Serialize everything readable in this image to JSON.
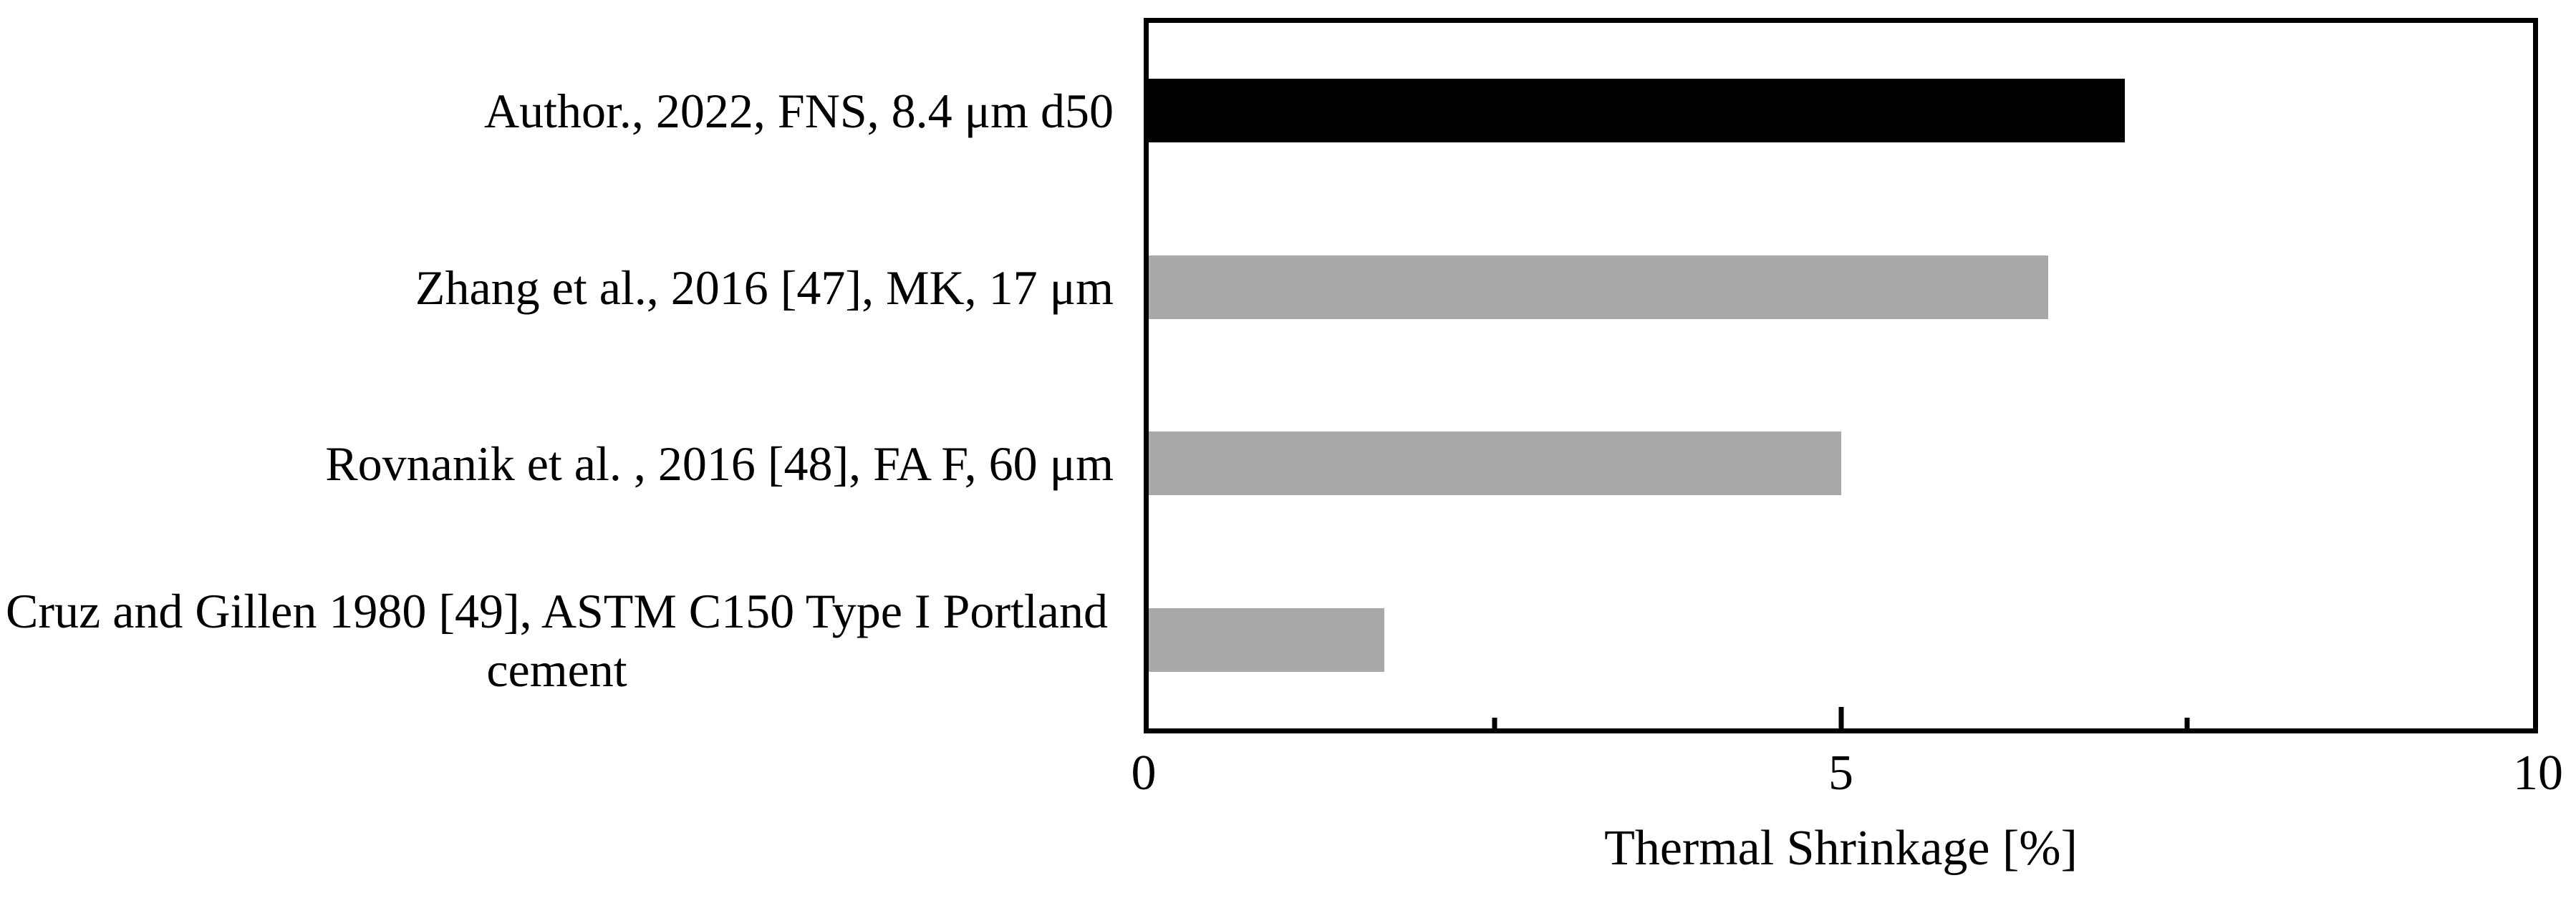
{
  "chart_data": {
    "type": "bar",
    "orientation": "horizontal",
    "title": "",
    "xlabel": "Thermal Shrinkage [%]",
    "ylabel": "",
    "categories": [
      "Author., 2022, FNS, 8.4 μm d50",
      "Zhang et al., 2016 [47], MK, 17 μm",
      "Rovnanik et al. , 2016 [48], FA F, 60 μm",
      "Cruz and Gillen 1980 [49], ASTM C150 Type I Portland cement"
    ],
    "values": [
      7.05,
      6.5,
      5.0,
      1.7
    ],
    "bar_colors": [
      "#000000",
      "#aba8a8",
      "#aba8a8",
      "#aba8a8"
    ],
    "xlim": [
      0,
      10
    ],
    "x_major_ticks": [
      0,
      5,
      10
    ],
    "x_major_tick_labels": [
      "0",
      "5",
      "10"
    ],
    "x_minor_ticks": [
      2.5,
      7.5
    ],
    "grid": "off",
    "legend": "none"
  },
  "colors": {
    "highlight_bar": "#000000",
    "reference_bar": "#aba8a8",
    "frame": "#000000",
    "background": "#ffffff"
  }
}
